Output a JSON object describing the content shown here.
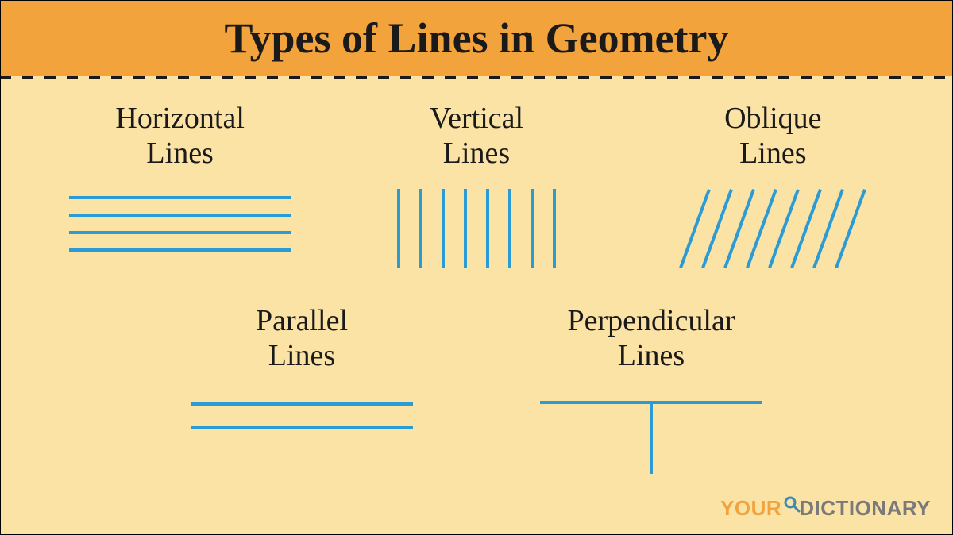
{
  "title": "Types of Lines in Geometry",
  "title_fontsize": 54,
  "title_color": "#1a1a1a",
  "header_bg": "#f2a33c",
  "body_bg": "#fbe2a5",
  "divider": {
    "color": "#1a1a1a",
    "thickness": 4,
    "dash": "14px"
  },
  "label_fontsize": 38,
  "label_color": "#1a1a1a",
  "line_color": "#2b9bd6",
  "line_width": 4,
  "items": {
    "horizontal": {
      "label": "Horizontal\nLines",
      "count": 4,
      "spacing": 22,
      "length": 280
    },
    "vertical": {
      "label": "Vertical\nLines",
      "count": 8,
      "spacing": 28,
      "length": 100
    },
    "oblique": {
      "label": "Oblique\nLines",
      "count": 8,
      "spacing": 28,
      "length": 105,
      "angle": 70
    },
    "parallel": {
      "label": "Parallel\nLines",
      "count": 2,
      "spacing": 30,
      "length": 280
    },
    "perpendicular": {
      "label": "Perpendicular\nLines",
      "h_length": 280,
      "v_length": 90
    }
  },
  "logo": {
    "text1": "YOUR",
    "text2": "DICTIONARY",
    "color1": "#f2a33c",
    "color2": "#7a7a7a",
    "icon_color": "#3b8bb5"
  }
}
